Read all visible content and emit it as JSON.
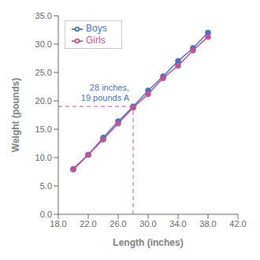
{
  "chart_data": {
    "type": "line",
    "x": [
      20,
      22,
      24,
      26,
      28,
      30,
      32,
      34,
      36,
      38
    ],
    "series": [
      {
        "name": "Boys",
        "color": "#4472C4",
        "marker": "circle",
        "values": [
          8.0,
          10.5,
          13.5,
          16.4,
          19.0,
          21.8,
          24.3,
          27.0,
          29.3,
          32.0
        ]
      },
      {
        "name": "Girls",
        "color": "#C0529A",
        "marker": "circle",
        "values": [
          7.9,
          10.5,
          13.2,
          16.0,
          18.8,
          21.2,
          24.0,
          26.2,
          28.9,
          31.3
        ]
      }
    ],
    "xlabel": "Length (inches)",
    "ylabel": "Weight (pounds)",
    "xlim": [
      18.0,
      42.0
    ],
    "ylim": [
      0.0,
      35.0
    ],
    "xticks": [
      {
        "value": 18,
        "label": "18.0"
      },
      {
        "value": 22,
        "label": "22.0"
      },
      {
        "value": 26,
        "label": "26.0"
      },
      {
        "value": 30,
        "label": "30.0"
      },
      {
        "value": 34,
        "label": "34.0"
      },
      {
        "value": 38,
        "label": "38.0"
      },
      {
        "value": 42,
        "label": "42.0"
      }
    ],
    "yticks": [
      {
        "value": 0,
        "label": "0.0"
      },
      {
        "value": 5,
        "label": "5.0"
      },
      {
        "value": 10,
        "label": "10.0"
      },
      {
        "value": 15,
        "label": "15.0"
      },
      {
        "value": 20,
        "label": "20.0"
      },
      {
        "value": 25,
        "label": "25.0"
      },
      {
        "value": 30,
        "label": "30.0"
      },
      {
        "value": 35,
        "label": "35.0"
      }
    ],
    "legend": "upper left",
    "grid": false,
    "annotations": [
      {
        "text": "28 inches,\n19 pounds A",
        "x": 28,
        "y": 19,
        "color": "#4472C4",
        "lines": {
          "color": "#C0529A",
          "line_style": "dashed"
        }
      }
    ]
  }
}
